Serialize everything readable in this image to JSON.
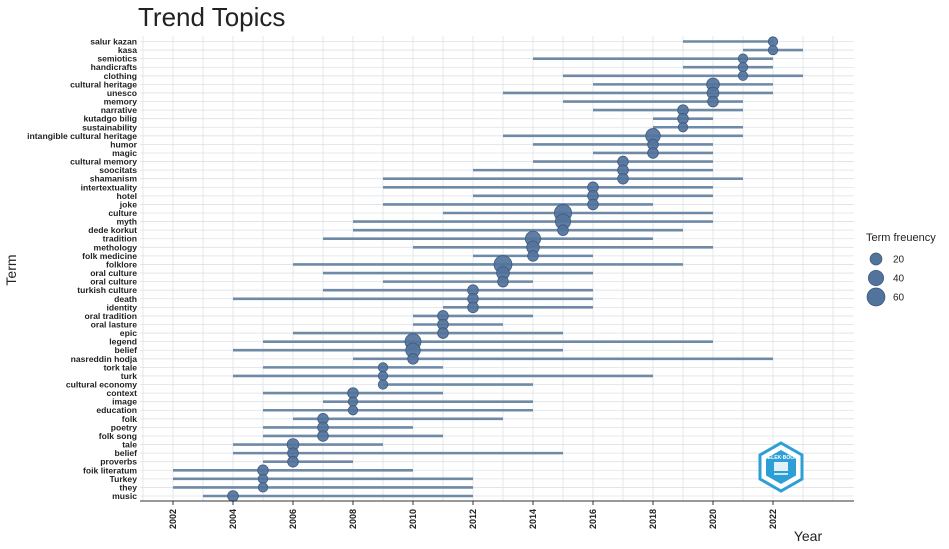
{
  "chart_data": {
    "type": "scatter",
    "title": "Trend Topics",
    "xlabel": "Year",
    "ylabel": "Term",
    "xlim": [
      2000.9,
      2024.7
    ],
    "x_ticks": [
      "2002",
      "2004",
      "2006",
      "2008",
      "2010",
      "2012",
      "2014",
      "2016",
      "2018",
      "2020",
      "2022"
    ],
    "legend": {
      "title": "Term freuency",
      "placement": "right",
      "entries": [
        {
          "label": "20",
          "value": 20
        },
        {
          "label": "40",
          "value": 40
        },
        {
          "label": "60",
          "value": 60
        }
      ]
    },
    "terms": [
      {
        "term": "salur kazan",
        "start": 2019,
        "end": 2022,
        "median": 2022,
        "freq": 10
      },
      {
        "term": "kasa",
        "start": 2021,
        "end": 2023,
        "median": 2022,
        "freq": 10
      },
      {
        "term": "semiotics",
        "start": 2014,
        "end": 2022,
        "median": 2021,
        "freq": 10
      },
      {
        "term": "handicrafts",
        "start": 2019,
        "end": 2022,
        "median": 2021,
        "freq": 10
      },
      {
        "term": "clothing",
        "start": 2015,
        "end": 2023,
        "median": 2021,
        "freq": 10
      },
      {
        "term": "cultural heritage",
        "start": 2016,
        "end": 2022,
        "median": 2020,
        "freq": 25
      },
      {
        "term": "unesco",
        "start": 2013,
        "end": 2022,
        "median": 2020,
        "freq": 20
      },
      {
        "term": "memory",
        "start": 2015,
        "end": 2021,
        "median": 2020,
        "freq": 15
      },
      {
        "term": "narrative",
        "start": 2016,
        "end": 2021,
        "median": 2019,
        "freq": 15
      },
      {
        "term": "kutadgo bilig",
        "start": 2018,
        "end": 2020,
        "median": 2019,
        "freq": 15
      },
      {
        "term": "sustainability",
        "start": 2018,
        "end": 2021,
        "median": 2019,
        "freq": 10
      },
      {
        "term": "intangible cultural heritage",
        "start": 2013,
        "end": 2021,
        "median": 2018,
        "freq": 35
      },
      {
        "term": "humor",
        "start": 2014,
        "end": 2020,
        "median": 2018,
        "freq": 15
      },
      {
        "term": "magic",
        "start": 2016,
        "end": 2020,
        "median": 2018,
        "freq": 15
      },
      {
        "term": "cultural memory",
        "start": 2014,
        "end": 2020,
        "median": 2017,
        "freq": 15
      },
      {
        "term": "soocitats",
        "start": 2012,
        "end": 2020,
        "median": 2017,
        "freq": 15
      },
      {
        "term": "shamanism",
        "start": 2009,
        "end": 2021,
        "median": 2017,
        "freq": 15
      },
      {
        "term": "intertextuality",
        "start": 2009,
        "end": 2020,
        "median": 2016,
        "freq": 15
      },
      {
        "term": "hotel",
        "start": 2012,
        "end": 2020,
        "median": 2016,
        "freq": 15
      },
      {
        "term": "joke",
        "start": 2009,
        "end": 2018,
        "median": 2016,
        "freq": 15
      },
      {
        "term": "culture",
        "start": 2011,
        "end": 2020,
        "median": 2015,
        "freq": 55
      },
      {
        "term": "myth",
        "start": 2008,
        "end": 2020,
        "median": 2015,
        "freq": 40
      },
      {
        "term": "dede korkut",
        "start": 2008,
        "end": 2019,
        "median": 2015,
        "freq": 15
      },
      {
        "term": "tradition",
        "start": 2007,
        "end": 2018,
        "median": 2014,
        "freq": 40
      },
      {
        "term": "methology",
        "start": 2010,
        "end": 2020,
        "median": 2014,
        "freq": 25
      },
      {
        "term": "folk medicine",
        "start": 2012,
        "end": 2016,
        "median": 2014,
        "freq": 15
      },
      {
        "term": "folklore",
        "start": 2006,
        "end": 2019,
        "median": 2013,
        "freq": 60
      },
      {
        "term": "oral culture",
        "start": 2007,
        "end": 2016,
        "median": 2013,
        "freq": 25
      },
      {
        "term": "oral culture",
        "start": 2009,
        "end": 2014,
        "median": 2013,
        "freq": 15
      },
      {
        "term": "turkish culture",
        "start": 2007,
        "end": 2016,
        "median": 2012,
        "freq": 15
      },
      {
        "term": "death",
        "start": 2004,
        "end": 2016,
        "median": 2012,
        "freq": 15
      },
      {
        "term": "identity",
        "start": 2011,
        "end": 2016,
        "median": 2012,
        "freq": 15
      },
      {
        "term": "oral tradition",
        "start": 2010,
        "end": 2014,
        "median": 2011,
        "freq": 15
      },
      {
        "term": "oral lasture",
        "start": 2010,
        "end": 2013,
        "median": 2011,
        "freq": 15
      },
      {
        "term": "epic",
        "start": 2006,
        "end": 2015,
        "median": 2011,
        "freq": 15
      },
      {
        "term": "legend",
        "start": 2005,
        "end": 2020,
        "median": 2010,
        "freq": 45
      },
      {
        "term": "belief",
        "start": 2004,
        "end": 2015,
        "median": 2010,
        "freq": 35
      },
      {
        "term": "nasreddin hodja",
        "start": 2008,
        "end": 2022,
        "median": 2010,
        "freq": 15
      },
      {
        "term": "tork tale",
        "start": 2005,
        "end": 2011,
        "median": 2009,
        "freq": 10
      },
      {
        "term": "turk",
        "start": 2004,
        "end": 2018,
        "median": 2009,
        "freq": 10
      },
      {
        "term": "cultural economy",
        "start": 2009,
        "end": 2014,
        "median": 2009,
        "freq": 10
      },
      {
        "term": "context",
        "start": 2005,
        "end": 2011,
        "median": 2008,
        "freq": 15
      },
      {
        "term": "image",
        "start": 2007,
        "end": 2014,
        "median": 2008,
        "freq": 10
      },
      {
        "term": "education",
        "start": 2005,
        "end": 2014,
        "median": 2008,
        "freq": 10
      },
      {
        "term": "folk",
        "start": 2006,
        "end": 2013,
        "median": 2007,
        "freq": 15
      },
      {
        "term": "poetry",
        "start": 2005,
        "end": 2010,
        "median": 2007,
        "freq": 15
      },
      {
        "term": "folk song",
        "start": 2005,
        "end": 2011,
        "median": 2007,
        "freq": 15
      },
      {
        "term": "tale",
        "start": 2004,
        "end": 2009,
        "median": 2006,
        "freq": 20
      },
      {
        "term": "belief",
        "start": 2004,
        "end": 2015,
        "median": 2006,
        "freq": 15
      },
      {
        "term": "proverbs",
        "start": 2005,
        "end": 2008,
        "median": 2006,
        "freq": 15
      },
      {
        "term": "foik literatum",
        "start": 2002,
        "end": 2010,
        "median": 2005,
        "freq": 15
      },
      {
        "term": "Turkey",
        "start": 2002,
        "end": 2012,
        "median": 2005,
        "freq": 10
      },
      {
        "term": "they",
        "start": 2002,
        "end": 2012,
        "median": 2005,
        "freq": 10
      },
      {
        "term": "music",
        "start": 2003,
        "end": 2012,
        "median": 2004,
        "freq": 15
      }
    ]
  },
  "colors": {
    "line": "#6f8aa6",
    "point": "#52739c",
    "point_stroke": "#3d5a80",
    "grid": "#dde1e6",
    "axis": "#333333",
    "logo": "#2e9fd6"
  },
  "logo": {
    "icon": "bilbee-logo-icon",
    "text": "BELEK·BOOK"
  }
}
